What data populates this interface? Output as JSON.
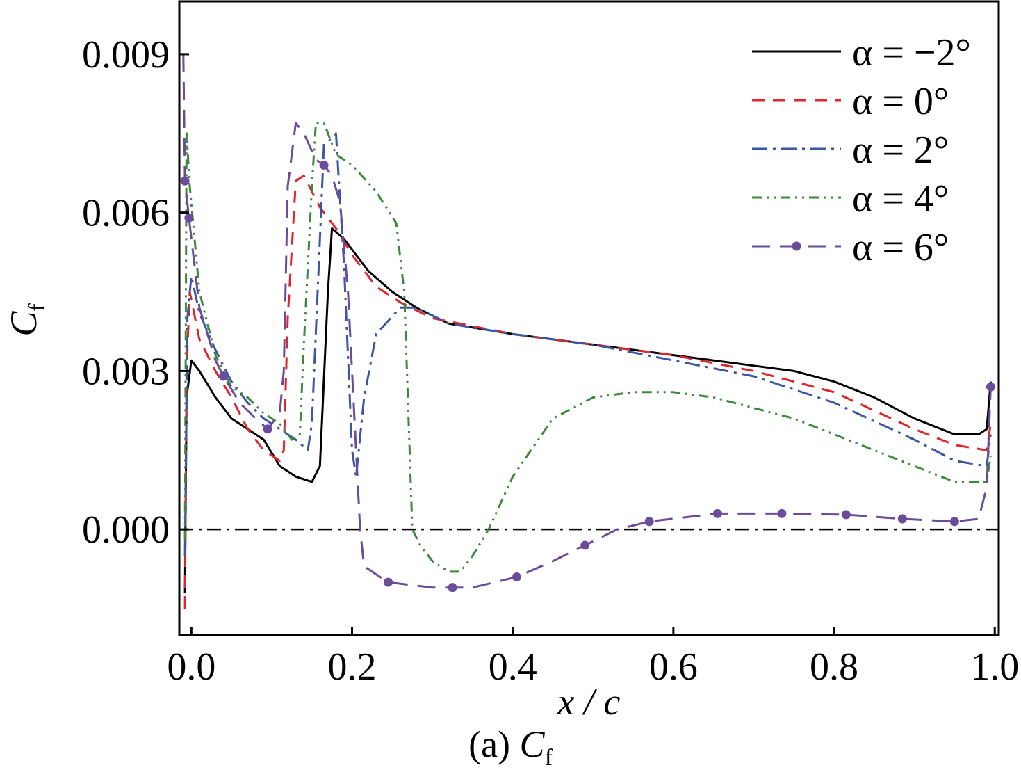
{
  "chart_data": {
    "type": "line",
    "title": "",
    "caption": {
      "prefix": "(a) ",
      "symbol": "C",
      "subscript": "f"
    },
    "xlabel": "x / c",
    "ylabel": {
      "symbol": "C",
      "subscript": "f"
    },
    "xlim": [
      -0.015,
      1.005
    ],
    "ylim": [
      -0.002,
      0.01
    ],
    "xticks": [
      0.0,
      0.2,
      0.4,
      0.6,
      0.8,
      1.0
    ],
    "xtick_labels": [
      "0.0",
      "0.2",
      "0.4",
      "0.6",
      "0.8",
      "1.0"
    ],
    "yticks": [
      0.0,
      0.003,
      0.006,
      0.009
    ],
    "ytick_labels": [
      "0.000",
      "0.003",
      "0.006",
      "0.009"
    ],
    "grid": false,
    "legend_position": "top-right",
    "reference_line": {
      "y": 0.0,
      "style": "dash-dot",
      "color": "#000000"
    },
    "series": [
      {
        "name": "α = −2°",
        "color": "#000000",
        "dash": "solid",
        "markers": false,
        "points": [
          [
            -0.008,
            -0.0012
          ],
          [
            -0.006,
            0.0025
          ],
          [
            0.0,
            0.0032
          ],
          [
            0.01,
            0.003
          ],
          [
            0.03,
            0.0025
          ],
          [
            0.05,
            0.0021
          ],
          [
            0.07,
            0.0019
          ],
          [
            0.09,
            0.0017
          ],
          [
            0.11,
            0.0012
          ],
          [
            0.13,
            0.001
          ],
          [
            0.15,
            0.0009
          ],
          [
            0.16,
            0.0012
          ],
          [
            0.17,
            0.0045
          ],
          [
            0.175,
            0.0057
          ],
          [
            0.19,
            0.0055
          ],
          [
            0.22,
            0.0049
          ],
          [
            0.25,
            0.0045
          ],
          [
            0.28,
            0.0042
          ],
          [
            0.32,
            0.0039
          ],
          [
            0.4,
            0.0037
          ],
          [
            0.5,
            0.0035
          ],
          [
            0.6,
            0.0033
          ],
          [
            0.7,
            0.0031
          ],
          [
            0.75,
            0.003
          ],
          [
            0.8,
            0.0028
          ],
          [
            0.85,
            0.0025
          ],
          [
            0.9,
            0.0021
          ],
          [
            0.95,
            0.0018
          ],
          [
            0.98,
            0.0018
          ],
          [
            0.99,
            0.0019
          ],
          [
            0.995,
            0.0028
          ]
        ]
      },
      {
        "name": "α = 0°",
        "color": "#e0262b",
        "dash": "dashed",
        "markers": false,
        "points": [
          [
            -0.008,
            -0.0015
          ],
          [
            -0.006,
            0.003
          ],
          [
            -0.002,
            0.0045
          ],
          [
            0.01,
            0.0036
          ],
          [
            0.03,
            0.003
          ],
          [
            0.05,
            0.0025
          ],
          [
            0.07,
            0.0019
          ],
          [
            0.09,
            0.0015
          ],
          [
            0.11,
            0.0013
          ],
          [
            0.115,
            0.0015
          ],
          [
            0.12,
            0.004
          ],
          [
            0.13,
            0.0066
          ],
          [
            0.14,
            0.0067
          ],
          [
            0.16,
            0.0061
          ],
          [
            0.18,
            0.0057
          ],
          [
            0.2,
            0.0052
          ],
          [
            0.23,
            0.0046
          ],
          [
            0.26,
            0.0043
          ],
          [
            0.3,
            0.004
          ],
          [
            0.4,
            0.0037
          ],
          [
            0.5,
            0.0035
          ],
          [
            0.6,
            0.0033
          ],
          [
            0.7,
            0.003
          ],
          [
            0.8,
            0.0026
          ],
          [
            0.9,
            0.0019
          ],
          [
            0.95,
            0.0016
          ],
          [
            0.99,
            0.0015
          ],
          [
            0.995,
            0.002
          ]
        ]
      },
      {
        "name": "α = 2°",
        "color": "#3a56a4",
        "dash": "dashdot",
        "markers": false,
        "points": [
          [
            -0.008,
            -0.0005
          ],
          [
            -0.005,
            0.004
          ],
          [
            0.0,
            0.0048
          ],
          [
            0.01,
            0.0041
          ],
          [
            0.03,
            0.0034
          ],
          [
            0.05,
            0.0028
          ],
          [
            0.07,
            0.0024
          ],
          [
            0.09,
            0.0021
          ],
          [
            0.11,
            0.0019
          ],
          [
            0.13,
            0.0017
          ],
          [
            0.145,
            0.0015
          ],
          [
            0.15,
            0.002
          ],
          [
            0.16,
            0.0055
          ],
          [
            0.165,
            0.0073
          ],
          [
            0.175,
            0.0074
          ],
          [
            0.18,
            0.0075
          ],
          [
            0.19,
            0.005
          ],
          [
            0.2,
            0.0015
          ],
          [
            0.205,
            0.001
          ],
          [
            0.215,
            0.0025
          ],
          [
            0.23,
            0.0037
          ],
          [
            0.26,
            0.0042
          ],
          [
            0.28,
            0.0042
          ],
          [
            0.32,
            0.0039
          ],
          [
            0.4,
            0.0037
          ],
          [
            0.5,
            0.0035
          ],
          [
            0.6,
            0.0032
          ],
          [
            0.7,
            0.0029
          ],
          [
            0.8,
            0.0024
          ],
          [
            0.9,
            0.0017
          ],
          [
            0.95,
            0.0013
          ],
          [
            0.99,
            0.0012
          ],
          [
            0.995,
            0.0018
          ]
        ]
      },
      {
        "name": "α = 4°",
        "color": "#3b8a3a",
        "dash": "dashdotdot",
        "markers": false,
        "points": [
          [
            -0.008,
            -0.0002
          ],
          [
            -0.006,
            0.0075
          ],
          [
            -0.002,
            0.0065
          ],
          [
            0.01,
            0.0045
          ],
          [
            0.03,
            0.0033
          ],
          [
            0.05,
            0.0027
          ],
          [
            0.07,
            0.0025
          ],
          [
            0.09,
            0.0022
          ],
          [
            0.11,
            0.002
          ],
          [
            0.125,
            0.0017
          ],
          [
            0.135,
            0.0018
          ],
          [
            0.14,
            0.0035
          ],
          [
            0.15,
            0.0065
          ],
          [
            0.155,
            0.0077
          ],
          [
            0.165,
            0.0077
          ],
          [
            0.18,
            0.0071
          ],
          [
            0.2,
            0.0069
          ],
          [
            0.23,
            0.0064
          ],
          [
            0.255,
            0.0058
          ],
          [
            0.265,
            0.0045
          ],
          [
            0.275,
            0.0
          ],
          [
            0.285,
            -0.0003
          ],
          [
            0.3,
            -0.0006
          ],
          [
            0.32,
            -0.0008
          ],
          [
            0.335,
            -0.0008
          ],
          [
            0.35,
            -0.0005
          ],
          [
            0.37,
            0.0
          ],
          [
            0.4,
            0.001
          ],
          [
            0.45,
            0.0021
          ],
          [
            0.5,
            0.0025
          ],
          [
            0.55,
            0.0026
          ],
          [
            0.6,
            0.0026
          ],
          [
            0.65,
            0.0025
          ],
          [
            0.7,
            0.0023
          ],
          [
            0.75,
            0.0021
          ],
          [
            0.8,
            0.0018
          ],
          [
            0.85,
            0.0015
          ],
          [
            0.9,
            0.0012
          ],
          [
            0.95,
            0.0009
          ],
          [
            0.99,
            0.0009
          ],
          [
            0.995,
            0.0014
          ]
        ]
      },
      {
        "name": "α = 6°",
        "color": "#6b4c9a",
        "dash": "longdash",
        "markers": true,
        "marker_x": [
          -0.008,
          -0.003,
          0.04,
          0.095,
          0.165,
          0.245,
          0.325,
          0.405,
          0.49,
          0.57,
          0.655,
          0.735,
          0.815,
          0.885,
          0.95,
          0.995
        ],
        "points": [
          [
            -0.01,
            0.009
          ],
          [
            -0.008,
            0.0066
          ],
          [
            -0.003,
            0.0059
          ],
          [
            0.01,
            0.0042
          ],
          [
            0.03,
            0.0032
          ],
          [
            0.04,
            0.0029
          ],
          [
            0.06,
            0.0024
          ],
          [
            0.08,
            0.0021
          ],
          [
            0.095,
            0.0019
          ],
          [
            0.11,
            0.0022
          ],
          [
            0.115,
            0.003
          ],
          [
            0.12,
            0.0065
          ],
          [
            0.13,
            0.0077
          ],
          [
            0.14,
            0.0075
          ],
          [
            0.155,
            0.007
          ],
          [
            0.165,
            0.0069
          ],
          [
            0.175,
            0.0067
          ],
          [
            0.185,
            0.0062
          ],
          [
            0.195,
            0.0045
          ],
          [
            0.205,
            0.0015
          ],
          [
            0.21,
            0.0
          ],
          [
            0.215,
            -0.0007
          ],
          [
            0.245,
            -0.001
          ],
          [
            0.3,
            -0.0011
          ],
          [
            0.325,
            -0.0011
          ],
          [
            0.35,
            -0.0011
          ],
          [
            0.405,
            -0.0009
          ],
          [
            0.45,
            -0.0006
          ],
          [
            0.49,
            -0.0003
          ],
          [
            0.53,
            0.0
          ],
          [
            0.57,
            0.00015
          ],
          [
            0.655,
            0.0003
          ],
          [
            0.735,
            0.0003
          ],
          [
            0.815,
            0.00028
          ],
          [
            0.885,
            0.0002
          ],
          [
            0.95,
            0.00015
          ],
          [
            0.98,
            0.0002
          ],
          [
            0.99,
            0.0008
          ],
          [
            0.995,
            0.0027
          ]
        ]
      }
    ]
  }
}
